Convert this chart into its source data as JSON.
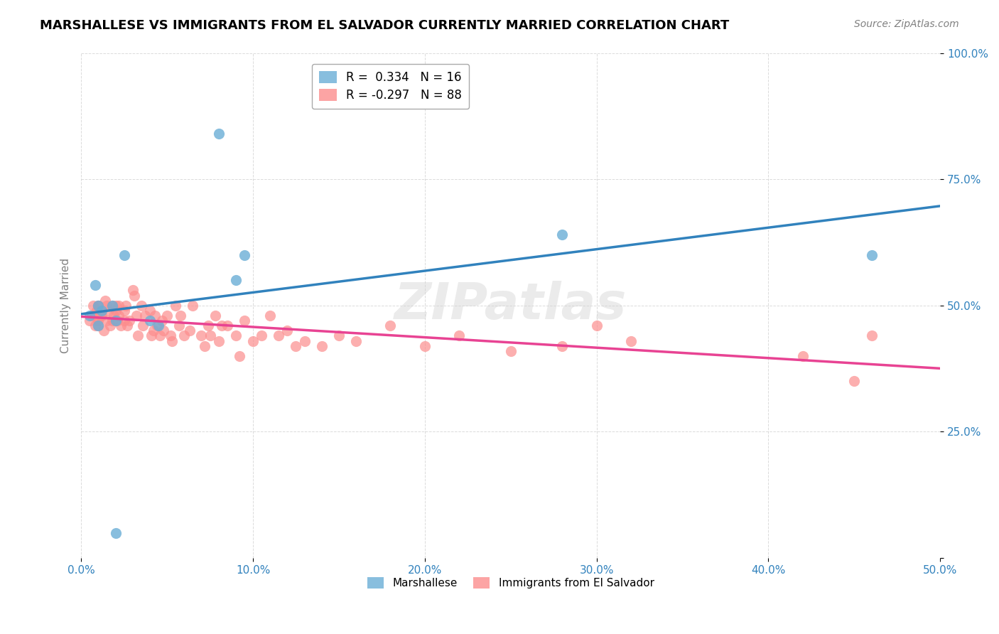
{
  "title": "MARSHALLESE VS IMMIGRANTS FROM EL SALVADOR CURRENTLY MARRIED CORRELATION CHART",
  "source_text": "Source: ZipAtlas.com",
  "xlabel_bottom": "",
  "ylabel": "Currently Married",
  "x_min": 0.0,
  "x_max": 0.5,
  "y_min": 0.0,
  "y_max": 1.0,
  "x_ticks": [
    0.0,
    0.1,
    0.2,
    0.3,
    0.4,
    0.5
  ],
  "x_tick_labels": [
    "0.0%",
    "10.0%",
    "20.0%",
    "30.0%",
    "40.0%",
    "50.0%"
  ],
  "y_ticks": [
    0.0,
    0.25,
    0.5,
    0.75,
    1.0
  ],
  "y_tick_labels": [
    "",
    "25.0%",
    "50.0%",
    "75.0%",
    "100.0%"
  ],
  "blue_color": "#6baed6",
  "pink_color": "#fc8d8d",
  "blue_line_color": "#3182bd",
  "pink_line_color": "#e84393",
  "legend_r_blue": "R =  0.334",
  "legend_n_blue": "N = 16",
  "legend_r_pink": "R = -0.297",
  "legend_n_pink": "N = 88",
  "legend_label_blue": "Marshallese",
  "legend_label_pink": "Immigrants from El Salvador",
  "watermark": "ZIPatlas",
  "blue_x": [
    0.005,
    0.008,
    0.01,
    0.01,
    0.012,
    0.018,
    0.02,
    0.025,
    0.04,
    0.045,
    0.08,
    0.09,
    0.095,
    0.28,
    0.46,
    0.02
  ],
  "blue_y": [
    0.48,
    0.54,
    0.5,
    0.46,
    0.49,
    0.5,
    0.47,
    0.6,
    0.47,
    0.46,
    0.84,
    0.55,
    0.6,
    0.64,
    0.6,
    0.05
  ],
  "pink_x": [
    0.005,
    0.006,
    0.007,
    0.008,
    0.008,
    0.009,
    0.01,
    0.01,
    0.01,
    0.01,
    0.011,
    0.012,
    0.012,
    0.013,
    0.014,
    0.015,
    0.015,
    0.016,
    0.017,
    0.018,
    0.018,
    0.019,
    0.02,
    0.02,
    0.021,
    0.022,
    0.022,
    0.023,
    0.025,
    0.025,
    0.026,
    0.027,
    0.028,
    0.03,
    0.031,
    0.032,
    0.033,
    0.035,
    0.036,
    0.037,
    0.04,
    0.041,
    0.042,
    0.043,
    0.044,
    0.046,
    0.047,
    0.048,
    0.05,
    0.052,
    0.053,
    0.055,
    0.057,
    0.058,
    0.06,
    0.063,
    0.065,
    0.07,
    0.072,
    0.074,
    0.075,
    0.078,
    0.08,
    0.082,
    0.085,
    0.09,
    0.092,
    0.095,
    0.1,
    0.105,
    0.11,
    0.115,
    0.12,
    0.125,
    0.13,
    0.14,
    0.15,
    0.16,
    0.18,
    0.2,
    0.22,
    0.25,
    0.28,
    0.3,
    0.32,
    0.42,
    0.45,
    0.46
  ],
  "pink_y": [
    0.47,
    0.48,
    0.5,
    0.46,
    0.48,
    0.49,
    0.5,
    0.47,
    0.5,
    0.46,
    0.48,
    0.49,
    0.48,
    0.45,
    0.51,
    0.5,
    0.47,
    0.49,
    0.46,
    0.47,
    0.5,
    0.48,
    0.49,
    0.5,
    0.47,
    0.48,
    0.5,
    0.46,
    0.49,
    0.47,
    0.5,
    0.46,
    0.47,
    0.53,
    0.52,
    0.48,
    0.44,
    0.5,
    0.46,
    0.48,
    0.49,
    0.44,
    0.45,
    0.48,
    0.46,
    0.44,
    0.47,
    0.45,
    0.48,
    0.44,
    0.43,
    0.5,
    0.46,
    0.48,
    0.44,
    0.45,
    0.5,
    0.44,
    0.42,
    0.46,
    0.44,
    0.48,
    0.43,
    0.46,
    0.46,
    0.44,
    0.4,
    0.47,
    0.43,
    0.44,
    0.48,
    0.44,
    0.45,
    0.42,
    0.43,
    0.42,
    0.44,
    0.43,
    0.46,
    0.42,
    0.44,
    0.41,
    0.42,
    0.46,
    0.43,
    0.4,
    0.35,
    0.44
  ]
}
